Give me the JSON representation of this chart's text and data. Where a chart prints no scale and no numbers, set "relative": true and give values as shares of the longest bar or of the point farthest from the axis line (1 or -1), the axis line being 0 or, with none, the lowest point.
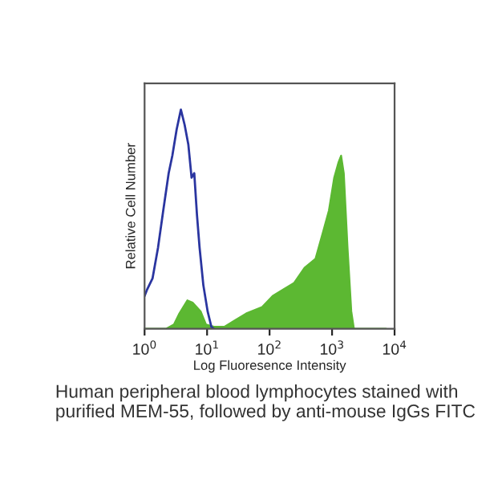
{
  "chart_data": {
    "type": "area",
    "relative": true,
    "xlabel": "Log Fluoresence Intensity",
    "ylabel": "Relative Cell Number",
    "log": "x",
    "xlim": [
      1,
      10000
    ],
    "xticks": [
      {
        "value": 1,
        "label": "10$^{0}$"
      },
      {
        "value": 10,
        "label": "10$^{1}$"
      },
      {
        "value": 100,
        "label": "10$^{2}$"
      },
      {
        "value": 1000,
        "label": "10$^{3}$"
      },
      {
        "value": 10000,
        "label": "10$^{4}$"
      }
    ],
    "tick_labels": "x",
    "grid": false,
    "series": [
      {
        "type": "line",
        "color": "#2a35a0",
        "x": [
          1,
          1.1,
          1.34,
          1.64,
          1.99,
          2.43,
          2.78,
          3.26,
          3.81,
          4.38,
          5.02,
          5.65,
          6.24,
          6.89,
          7.59,
          8.71,
          10.2,
          11.7,
          12.9
        ],
        "values": [
          0.15,
          0.18,
          0.23,
          0.37,
          0.54,
          0.71,
          0.79,
          0.91,
          1.0,
          0.93,
          0.84,
          0.69,
          0.71,
          0.52,
          0.37,
          0.2,
          0.08,
          0.01,
          0
        ]
      },
      {
        "color": "#5cb832",
        "x": [
          1,
          2.2,
          2.95,
          3.6,
          4.83,
          5.87,
          7.9,
          9.6,
          12.9,
          19.1,
          28.4,
          42.1,
          75.9,
          112,
          167,
          247,
          366,
          543,
          729,
          889,
          1081,
          1268,
          1396,
          1542,
          1770,
          2032,
          2239,
          7295
        ],
        "values": [
          0,
          0,
          0.02,
          0.07,
          0.13,
          0.12,
          0.08,
          0.02,
          0.01,
          0.01,
          0.04,
          0.07,
          0.1,
          0.15,
          0.18,
          0.21,
          0.28,
          0.32,
          0.45,
          0.54,
          0.69,
          0.76,
          0.79,
          0.71,
          0.37,
          0.08,
          0,
          0
        ]
      }
    ],
    "annotations": [
      "Human peripheral blood lymphocytes stained with purified MEM-55, followed by anti-mouse IgGs FITC"
    ]
  }
}
